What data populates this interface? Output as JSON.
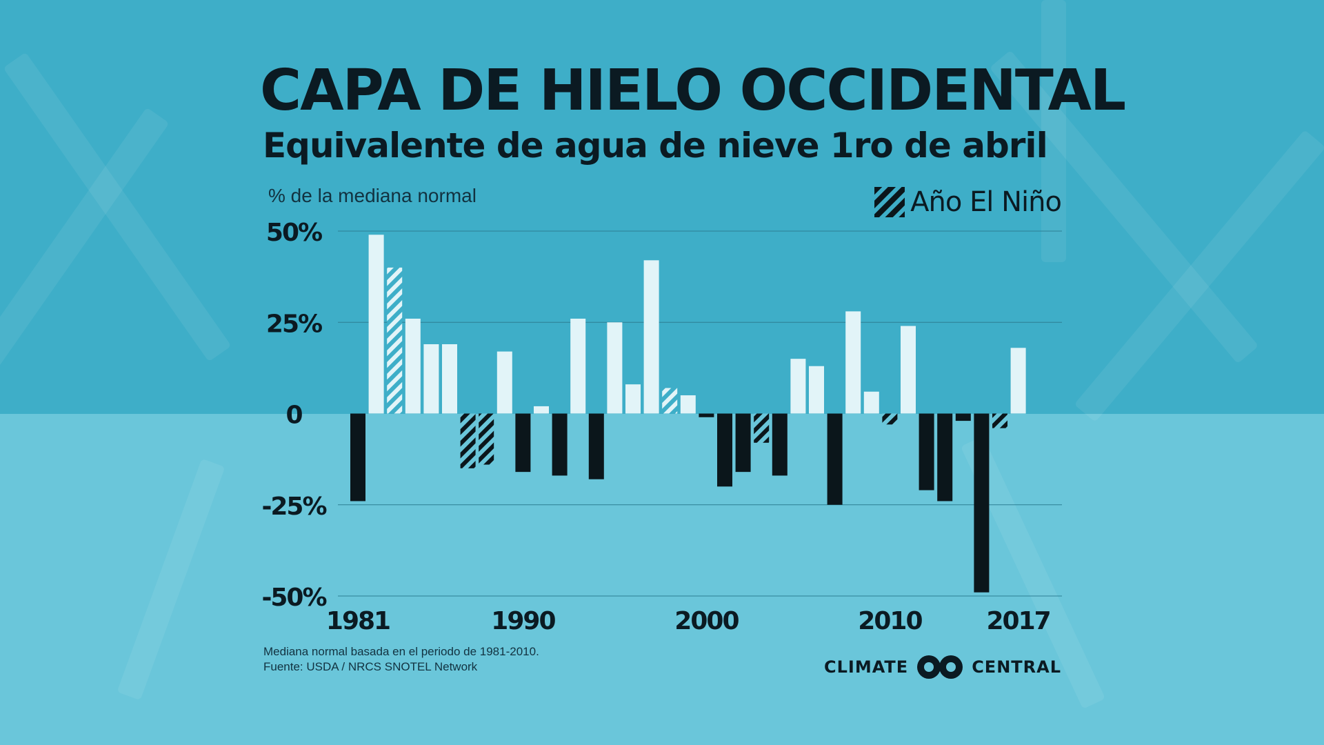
{
  "title": "CAPA DE HIELO OCCIDENTAL",
  "subtitle": "Equivalente de agua de nieve 1ro de abril",
  "unit_label": "% de la mediana normal",
  "legend": {
    "label": "Año El Niño",
    "icon": "hatched-swatch-icon"
  },
  "footnote": {
    "line1": "Mediana normal basada en el periodo de 1981-2010.",
    "line2": "Fuente: USDA / NRCS SNOTEL Network"
  },
  "brand": {
    "left": "CLIMATE",
    "right": "CENTRAL",
    "icon": "climate-central-logo-icon"
  },
  "colors": {
    "positive": "#e2f4f8",
    "negative": "#0b161b",
    "gridline": "#2c7f93",
    "text": "#0b1a22"
  },
  "chart_data": {
    "type": "bar",
    "title": "CAPA DE HIELO OCCIDENTAL",
    "subtitle": "Equivalente de agua de nieve 1ro de abril",
    "ylabel": "% de la mediana normal",
    "ylim": [
      -50,
      50
    ],
    "yticks": [
      50,
      25,
      0,
      -25,
      -50
    ],
    "ytick_labels": [
      "50%",
      "25%",
      "0",
      "-25%",
      "-50%"
    ],
    "xtick_labels": [
      {
        "year": 1981,
        "label": "1981"
      },
      {
        "year": 1990,
        "label": "1990"
      },
      {
        "year": 2000,
        "label": "2000"
      },
      {
        "year": 2010,
        "label": "2010"
      },
      {
        "year": 2017,
        "label": "2017"
      }
    ],
    "grid": true,
    "legend_position": "top-right",
    "points": [
      {
        "year": 1981,
        "value": -24,
        "el_nino": false
      },
      {
        "year": 1982,
        "value": 49,
        "el_nino": false
      },
      {
        "year": 1983,
        "value": 40,
        "el_nino": true
      },
      {
        "year": 1984,
        "value": 26,
        "el_nino": false
      },
      {
        "year": 1985,
        "value": 19,
        "el_nino": false
      },
      {
        "year": 1986,
        "value": 19,
        "el_nino": false
      },
      {
        "year": 1987,
        "value": -15,
        "el_nino": true
      },
      {
        "year": 1988,
        "value": -14,
        "el_nino": true
      },
      {
        "year": 1989,
        "value": 17,
        "el_nino": false
      },
      {
        "year": 1990,
        "value": -16,
        "el_nino": false
      },
      {
        "year": 1991,
        "value": 2,
        "el_nino": false
      },
      {
        "year": 1992,
        "value": -17,
        "el_nino": false
      },
      {
        "year": 1993,
        "value": 26,
        "el_nino": false
      },
      {
        "year": 1994,
        "value": -18,
        "el_nino": false
      },
      {
        "year": 1995,
        "value": 25,
        "el_nino": false
      },
      {
        "year": 1996,
        "value": 8,
        "el_nino": false
      },
      {
        "year": 1997,
        "value": 42,
        "el_nino": false
      },
      {
        "year": 1998,
        "value": 7,
        "el_nino": true
      },
      {
        "year": 1999,
        "value": 5,
        "el_nino": false
      },
      {
        "year": 2000,
        "value": -1,
        "el_nino": false
      },
      {
        "year": 2001,
        "value": -20,
        "el_nino": false
      },
      {
        "year": 2002,
        "value": -16,
        "el_nino": false
      },
      {
        "year": 2003,
        "value": -8,
        "el_nino": true
      },
      {
        "year": 2004,
        "value": -17,
        "el_nino": false
      },
      {
        "year": 2005,
        "value": 15,
        "el_nino": false
      },
      {
        "year": 2006,
        "value": 13,
        "el_nino": false
      },
      {
        "year": 2007,
        "value": -25,
        "el_nino": false
      },
      {
        "year": 2008,
        "value": 28,
        "el_nino": false
      },
      {
        "year": 2009,
        "value": 6,
        "el_nino": false
      },
      {
        "year": 2010,
        "value": -3,
        "el_nino": true
      },
      {
        "year": 2011,
        "value": 24,
        "el_nino": false
      },
      {
        "year": 2012,
        "value": -21,
        "el_nino": false
      },
      {
        "year": 2013,
        "value": -24,
        "el_nino": false
      },
      {
        "year": 2014,
        "value": -2,
        "el_nino": false
      },
      {
        "year": 2015,
        "value": -49,
        "el_nino": false
      },
      {
        "year": 2016,
        "value": -4,
        "el_nino": true
      },
      {
        "year": 2017,
        "value": 18,
        "el_nino": false
      }
    ]
  }
}
